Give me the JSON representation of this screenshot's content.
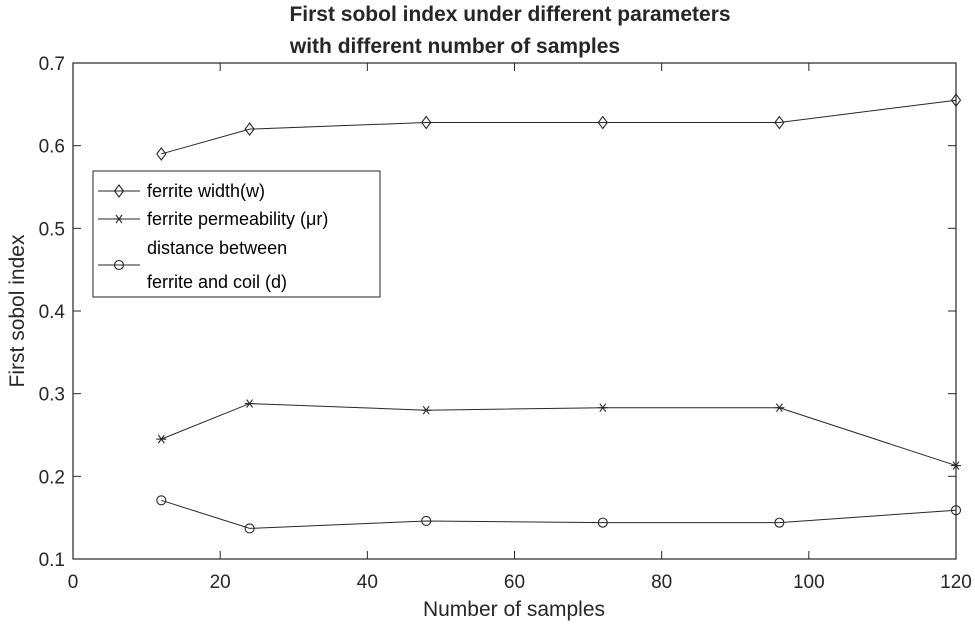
{
  "chart_data": {
    "type": "line",
    "title": [
      "First sobol index under different parameters",
      "with different number of samples"
    ],
    "xlabel": "Number of samples",
    "ylabel": "First sobol index",
    "xlim": [
      0,
      120
    ],
    "ylim": [
      0.1,
      0.7
    ],
    "xticks": [
      0,
      20,
      40,
      60,
      80,
      100,
      120
    ],
    "yticks": [
      0.1,
      0.2,
      0.3,
      0.4,
      0.5,
      0.6,
      0.7
    ],
    "grid": false,
    "legend_position": "upper-left",
    "x": [
      12,
      24,
      48,
      72,
      96,
      120
    ],
    "series": [
      {
        "name": "ferrite width(w)",
        "marker": "diamond",
        "color": "#262626",
        "values": [
          0.59,
          0.62,
          0.628,
          0.628,
          0.628,
          0.655
        ]
      },
      {
        "name": "ferrite permeability (μr)",
        "marker": "asterisk",
        "color": "#262626",
        "values": [
          0.245,
          0.288,
          0.28,
          0.283,
          0.283,
          0.213
        ]
      },
      {
        "name": "distance between ferrite and coil (d)",
        "legend_lines": [
          "distance between",
          "ferrite and coil (d)"
        ],
        "marker": "circle",
        "color": "#262626",
        "values": [
          0.171,
          0.137,
          0.146,
          0.144,
          0.144,
          0.159
        ]
      }
    ]
  }
}
